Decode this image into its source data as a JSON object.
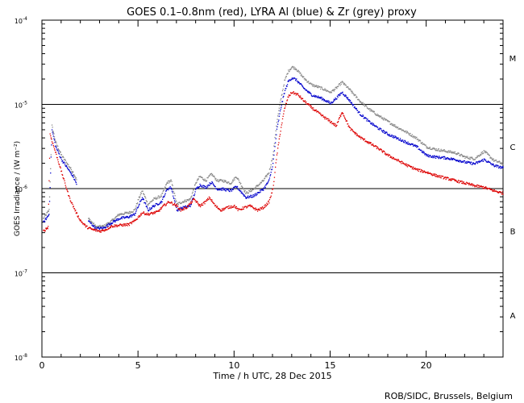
{
  "chart_data": {
    "type": "scatter",
    "title": "GOES 0.1–0.8nm (red), LYRA Al (blue) & Zr (grey) proxy",
    "xlabel": "Time / h UTC, 28 Dec 2015",
    "ylabel": "GOES Irradiance / (W m⁻²)",
    "credit": "ROB/SIDC, Brussels, Belgium",
    "xlim": [
      0,
      24
    ],
    "ylim_log10": [
      -8,
      -4
    ],
    "x_ticks": [
      {
        "value": 0,
        "label": "0"
      },
      {
        "value": 5,
        "label": "5"
      },
      {
        "value": 10,
        "label": "10"
      },
      {
        "value": 15,
        "label": "15"
      },
      {
        "value": 20,
        "label": "20"
      }
    ],
    "y_ticks": [
      {
        "exp": -4,
        "label_base": "10",
        "label_exp": "-4"
      },
      {
        "exp": -5,
        "label_base": "10",
        "label_exp": "-5"
      },
      {
        "exp": -6,
        "label_base": "10",
        "label_exp": "-6"
      },
      {
        "exp": -7,
        "label_base": "10",
        "label_exp": "-7"
      },
      {
        "exp": -8,
        "label_base": "10",
        "label_exp": "-8"
      }
    ],
    "threshold_lines_log10": [
      -5,
      -6,
      -7
    ],
    "flare_classes": [
      {
        "label": "M",
        "center_log10": -4.45
      },
      {
        "label": "C",
        "center_log10": -5.5
      },
      {
        "label": "B",
        "center_log10": -6.5
      },
      {
        "label": "A",
        "center_log10": -7.5
      }
    ],
    "series": [
      {
        "name": "GOES 0.1-0.8nm",
        "color": "#dd0000",
        "points": [
          [
            0.05,
            -6.5
          ],
          [
            0.3,
            -6.45
          ],
          [
            0.4,
            -5.35
          ],
          [
            0.6,
            -5.5
          ],
          [
            0.8,
            -5.65
          ],
          [
            1.0,
            -5.8
          ],
          [
            1.2,
            -5.95
          ],
          [
            1.4,
            -6.1
          ],
          [
            1.6,
            -6.2
          ],
          [
            1.8,
            -6.3
          ],
          [
            2.0,
            -6.38
          ],
          [
            2.3,
            -6.45
          ],
          [
            2.6,
            -6.48
          ],
          [
            3.0,
            -6.5
          ],
          [
            3.3,
            -6.48
          ],
          [
            3.6,
            -6.44
          ],
          [
            4.0,
            -6.43
          ],
          [
            4.5,
            -6.42
          ],
          [
            4.8,
            -6.38
          ],
          [
            5.2,
            -6.28
          ],
          [
            5.5,
            -6.3
          ],
          [
            6.0,
            -6.27
          ],
          [
            6.3,
            -6.2
          ],
          [
            6.6,
            -6.15
          ],
          [
            7.0,
            -6.2
          ],
          [
            7.2,
            -6.25
          ],
          [
            7.5,
            -6.22
          ],
          [
            7.9,
            -6.12
          ],
          [
            8.2,
            -6.2
          ],
          [
            8.5,
            -6.15
          ],
          [
            8.7,
            -6.1
          ],
          [
            9.0,
            -6.2
          ],
          [
            9.3,
            -6.25
          ],
          [
            9.6,
            -6.22
          ],
          [
            10.0,
            -6.2
          ],
          [
            10.2,
            -6.25
          ],
          [
            10.5,
            -6.22
          ],
          [
            10.8,
            -6.2
          ],
          [
            11.2,
            -6.25
          ],
          [
            11.5,
            -6.22
          ],
          [
            11.8,
            -6.15
          ],
          [
            12.0,
            -6.0
          ],
          [
            12.2,
            -5.6
          ],
          [
            12.4,
            -5.3
          ],
          [
            12.6,
            -5.05
          ],
          [
            12.8,
            -4.9
          ],
          [
            13.0,
            -4.85
          ],
          [
            13.3,
            -4.88
          ],
          [
            13.6,
            -4.95
          ],
          [
            14.0,
            -5.03
          ],
          [
            14.5,
            -5.12
          ],
          [
            15.0,
            -5.2
          ],
          [
            15.3,
            -5.25
          ],
          [
            15.6,
            -5.08
          ],
          [
            16.0,
            -5.28
          ],
          [
            16.5,
            -5.38
          ],
          [
            17.0,
            -5.45
          ],
          [
            17.5,
            -5.52
          ],
          [
            18.0,
            -5.6
          ],
          [
            18.5,
            -5.66
          ],
          [
            19.0,
            -5.72
          ],
          [
            19.5,
            -5.77
          ],
          [
            20.0,
            -5.8
          ],
          [
            20.5,
            -5.84
          ],
          [
            21.0,
            -5.87
          ],
          [
            21.5,
            -5.9
          ],
          [
            22.0,
            -5.93
          ],
          [
            22.5,
            -5.96
          ],
          [
            23.0,
            -5.98
          ],
          [
            23.5,
            -6.02
          ],
          [
            24.0,
            -6.05
          ]
        ]
      },
      {
        "name": "LYRA Al proxy",
        "color": "#0000cc",
        "points": [
          [
            0.05,
            -6.4
          ],
          [
            0.35,
            -6.3
          ],
          [
            0.5,
            -5.3
          ],
          [
            0.7,
            -5.5
          ],
          [
            1.0,
            -5.65
          ],
          [
            1.3,
            -5.75
          ],
          [
            1.6,
            -5.85
          ],
          [
            1.8,
            -5.95
          ],
          [
            2.4,
            -6.38
          ],
          [
            2.8,
            -6.47
          ],
          [
            3.2,
            -6.46
          ],
          [
            3.6,
            -6.4
          ],
          [
            4.0,
            -6.35
          ],
          [
            4.5,
            -6.33
          ],
          [
            4.8,
            -6.3
          ],
          [
            5.0,
            -6.2
          ],
          [
            5.2,
            -6.1
          ],
          [
            5.5,
            -6.25
          ],
          [
            5.8,
            -6.2
          ],
          [
            6.2,
            -6.15
          ],
          [
            6.5,
            -6.0
          ],
          [
            6.7,
            -5.98
          ],
          [
            7.0,
            -6.25
          ],
          [
            7.3,
            -6.22
          ],
          [
            7.7,
            -6.2
          ],
          [
            8.0,
            -6.0
          ],
          [
            8.2,
            -5.95
          ],
          [
            8.5,
            -5.98
          ],
          [
            8.8,
            -5.92
          ],
          [
            9.1,
            -6.0
          ],
          [
            9.4,
            -6.0
          ],
          [
            9.8,
            -6.02
          ],
          [
            10.1,
            -5.97
          ],
          [
            10.6,
            -6.1
          ],
          [
            11.0,
            -6.08
          ],
          [
            11.5,
            -6.0
          ],
          [
            11.8,
            -5.9
          ],
          [
            12.0,
            -5.7
          ],
          [
            12.2,
            -5.3
          ],
          [
            12.4,
            -5.05
          ],
          [
            12.6,
            -4.85
          ],
          [
            12.8,
            -4.72
          ],
          [
            13.0,
            -4.68
          ],
          [
            13.2,
            -4.7
          ],
          [
            13.6,
            -4.8
          ],
          [
            14.0,
            -4.88
          ],
          [
            14.5,
            -4.92
          ],
          [
            15.0,
            -4.98
          ],
          [
            15.3,
            -4.92
          ],
          [
            15.6,
            -4.85
          ],
          [
            16.0,
            -4.95
          ],
          [
            16.5,
            -5.1
          ],
          [
            17.0,
            -5.2
          ],
          [
            17.5,
            -5.28
          ],
          [
            18.0,
            -5.35
          ],
          [
            18.5,
            -5.4
          ],
          [
            19.0,
            -5.45
          ],
          [
            19.5,
            -5.5
          ],
          [
            20.0,
            -5.6
          ],
          [
            20.5,
            -5.62
          ],
          [
            21.0,
            -5.63
          ],
          [
            21.5,
            -5.65
          ],
          [
            22.0,
            -5.68
          ],
          [
            22.5,
            -5.7
          ],
          [
            23.0,
            -5.65
          ],
          [
            23.5,
            -5.72
          ],
          [
            24.0,
            -5.75
          ]
        ]
      },
      {
        "name": "LYRA Zr proxy",
        "color": "#888888",
        "points": [
          [
            0.05,
            -6.35
          ],
          [
            0.35,
            -6.25
          ],
          [
            0.5,
            -5.25
          ],
          [
            0.7,
            -5.45
          ],
          [
            1.0,
            -5.6
          ],
          [
            1.3,
            -5.7
          ],
          [
            1.6,
            -5.8
          ],
          [
            1.8,
            -5.9
          ],
          [
            2.4,
            -6.35
          ],
          [
            2.8,
            -6.45
          ],
          [
            3.2,
            -6.44
          ],
          [
            3.6,
            -6.38
          ],
          [
            4.0,
            -6.3
          ],
          [
            4.5,
            -6.28
          ],
          [
            4.8,
            -6.25
          ],
          [
            5.0,
            -6.12
          ],
          [
            5.2,
            -6.02
          ],
          [
            5.5,
            -6.18
          ],
          [
            5.8,
            -6.12
          ],
          [
            6.2,
            -6.08
          ],
          [
            6.5,
            -5.92
          ],
          [
            6.7,
            -5.9
          ],
          [
            7.0,
            -6.18
          ],
          [
            7.3,
            -6.15
          ],
          [
            7.7,
            -6.12
          ],
          [
            8.0,
            -5.92
          ],
          [
            8.2,
            -5.85
          ],
          [
            8.5,
            -5.9
          ],
          [
            8.8,
            -5.82
          ],
          [
            9.1,
            -5.9
          ],
          [
            9.4,
            -5.9
          ],
          [
            9.8,
            -5.93
          ],
          [
            10.1,
            -5.85
          ],
          [
            10.6,
            -6.05
          ],
          [
            11.0,
            -6.0
          ],
          [
            11.5,
            -5.9
          ],
          [
            11.8,
            -5.8
          ],
          [
            12.0,
            -5.6
          ],
          [
            12.2,
            -5.2
          ],
          [
            12.4,
            -4.95
          ],
          [
            12.6,
            -4.72
          ],
          [
            12.8,
            -4.6
          ],
          [
            13.0,
            -4.55
          ],
          [
            13.2,
            -4.57
          ],
          [
            13.6,
            -4.68
          ],
          [
            14.0,
            -4.76
          ],
          [
            14.5,
            -4.8
          ],
          [
            15.0,
            -4.85
          ],
          [
            15.3,
            -4.8
          ],
          [
            15.6,
            -4.73
          ],
          [
            16.0,
            -4.82
          ],
          [
            16.5,
            -4.95
          ],
          [
            17.0,
            -5.05
          ],
          [
            17.5,
            -5.13
          ],
          [
            18.0,
            -5.2
          ],
          [
            18.5,
            -5.27
          ],
          [
            19.0,
            -5.33
          ],
          [
            19.5,
            -5.4
          ],
          [
            20.0,
            -5.5
          ],
          [
            20.5,
            -5.53
          ],
          [
            21.0,
            -5.55
          ],
          [
            21.5,
            -5.57
          ],
          [
            22.0,
            -5.62
          ],
          [
            22.5,
            -5.64
          ],
          [
            23.0,
            -5.55
          ],
          [
            23.5,
            -5.66
          ],
          [
            24.0,
            -5.7
          ]
        ]
      }
    ]
  }
}
